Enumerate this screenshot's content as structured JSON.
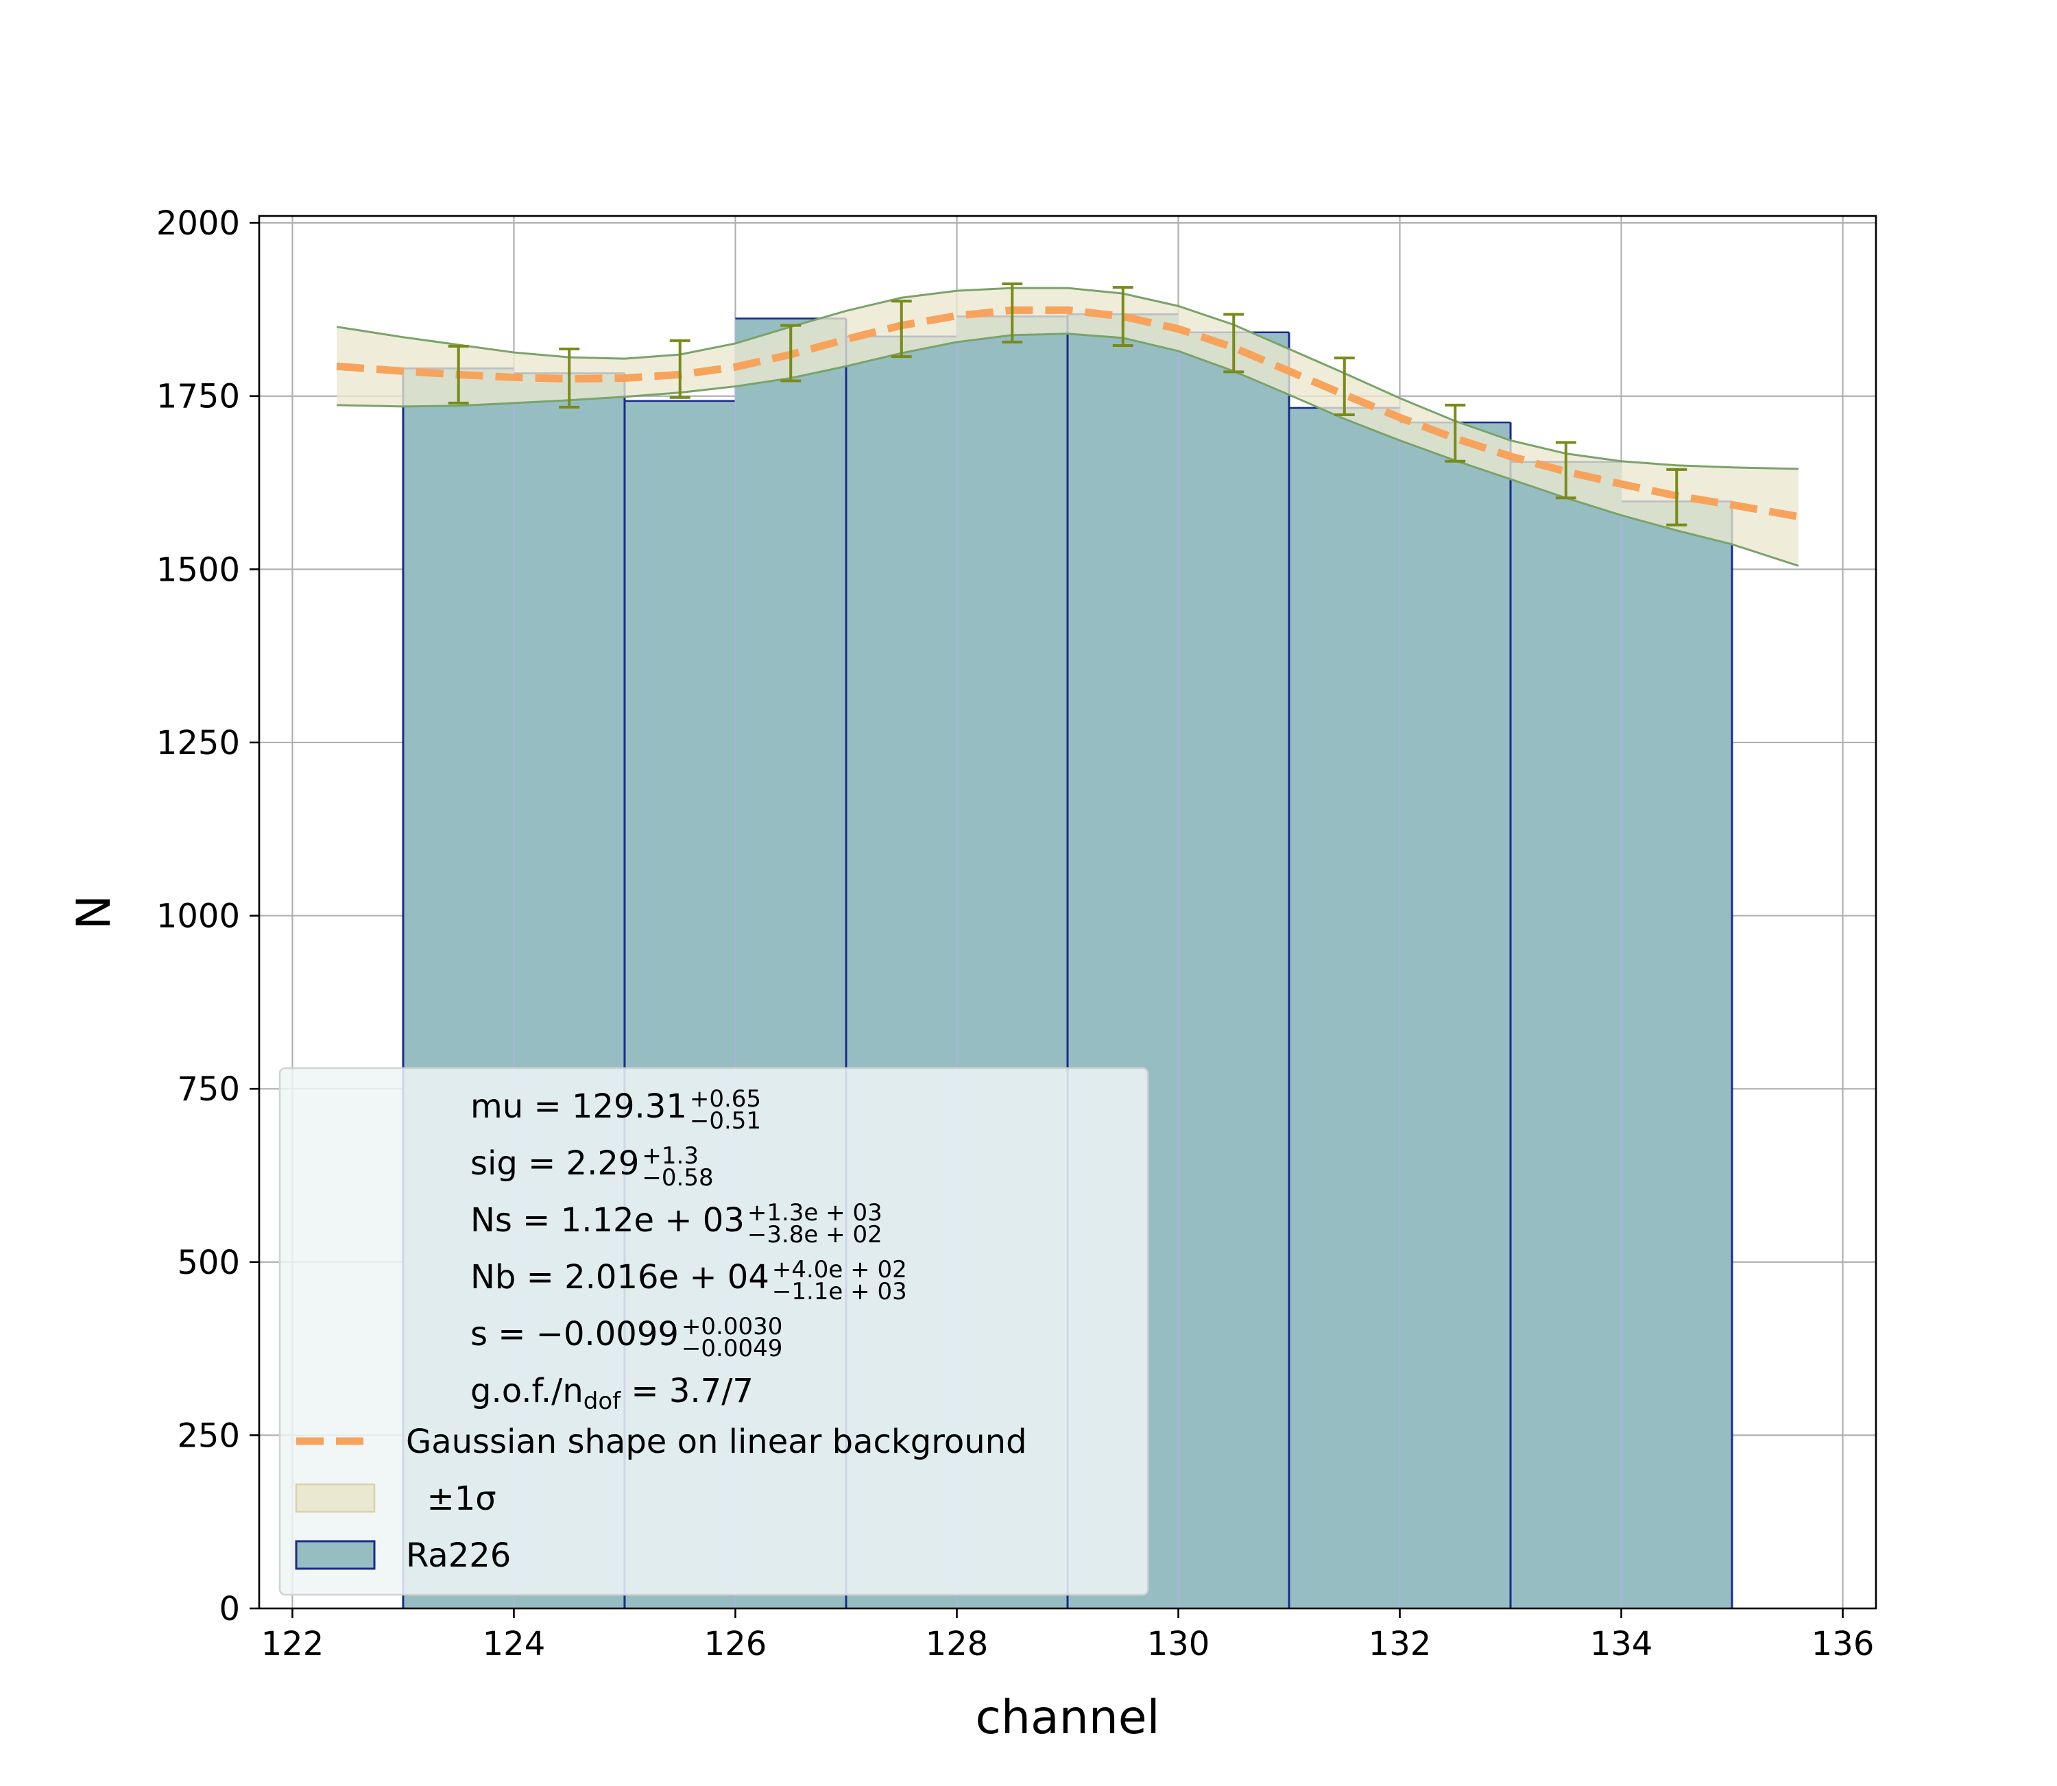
{
  "chart_data": {
    "type": "bar",
    "xlabel": "channel",
    "ylabel": "N",
    "xlim": [
      121.7,
      136.3
    ],
    "ylim": [
      0,
      2010
    ],
    "grid": true,
    "legend_placement": "lower-left",
    "xticks": [
      122,
      124,
      126,
      128,
      130,
      132,
      134,
      136
    ],
    "yticks": [
      0,
      250,
      500,
      750,
      1000,
      1250,
      1500,
      1750,
      2000
    ],
    "histogram": {
      "name": "Ra226",
      "bin_edges": [
        123,
        124,
        125,
        126,
        127,
        128,
        129,
        130,
        131,
        132,
        133,
        134,
        135
      ],
      "values": [
        1790,
        1783,
        1743,
        1862,
        1836,
        1865,
        1868,
        1842,
        1733,
        1712,
        1655,
        1598
      ],
      "fill_color": "#96bec2",
      "edge_color": "#1a2a8c",
      "light_edge_color": "#aab4dc"
    },
    "fit_curve": {
      "name": "Gaussian shape on linear background",
      "x": [
        122.4,
        123,
        123.5,
        124,
        124.5,
        125,
        125.5,
        126,
        126.5,
        127,
        127.5,
        128,
        128.5,
        129,
        129.5,
        130,
        130.5,
        131,
        131.5,
        132,
        132.5,
        133,
        133.5,
        134,
        134.5,
        135,
        135.6
      ],
      "y": [
        1793,
        1786,
        1781,
        1777,
        1775,
        1776,
        1781,
        1792,
        1810,
        1832,
        1852,
        1866,
        1874,
        1874,
        1865,
        1847,
        1820,
        1786,
        1752,
        1719,
        1689,
        1663,
        1641,
        1623,
        1606,
        1593,
        1576
      ],
      "color": "#f7a35c"
    },
    "band": {
      "name": "±1σ",
      "upper": [
        1850,
        1835,
        1824,
        1813,
        1806,
        1804,
        1810,
        1826,
        1850,
        1873,
        1892,
        1902,
        1906,
        1906,
        1898,
        1880,
        1853,
        1818,
        1783,
        1747,
        1714,
        1686,
        1667,
        1656,
        1650,
        1647,
        1645
      ],
      "lower": [
        1737,
        1735,
        1736,
        1740,
        1744,
        1749,
        1755,
        1764,
        1776,
        1793,
        1812,
        1828,
        1838,
        1840,
        1834,
        1815,
        1786,
        1752,
        1717,
        1686,
        1657,
        1630,
        1603,
        1578,
        1556,
        1536,
        1505
      ],
      "fill_color": "#ebe8d0",
      "edge_color": "#7aa36a"
    },
    "errorbars": {
      "x": [
        123.5,
        124.5,
        125.5,
        126.5,
        127.5,
        128.5,
        129.5,
        130.5,
        131.5,
        132.5,
        133.5,
        134.5
      ],
      "y": [
        1781,
        1776,
        1789,
        1812,
        1847,
        1869,
        1864,
        1826,
        1763,
        1696,
        1643,
        1604
      ],
      "upper": [
        1822,
        1818,
        1830,
        1852,
        1887,
        1912,
        1907,
        1868,
        1805,
        1737,
        1683,
        1644
      ],
      "lower": [
        1740,
        1734,
        1748,
        1772,
        1807,
        1828,
        1823,
        1785,
        1723,
        1656,
        1603,
        1564
      ],
      "color": "#7a8a1a"
    },
    "annotations": [
      {
        "label": "mu = 129.31",
        "sup": "+0.65",
        "sub": "−0.51"
      },
      {
        "label": "sig = 2.29",
        "sup": "+1.3",
        "sub": "−0.58"
      },
      {
        "label": "Ns = 1.12e + 03",
        "sup": "+1.3e + 03",
        "sub": "−3.8e + 02"
      },
      {
        "label": "Nb = 2.016e + 04",
        "sup": "+4.0e + 02",
        "sub": "−1.1e + 03"
      },
      {
        "label": "s = −0.0099",
        "sup": "+0.0030",
        "sub": "−0.0049"
      },
      {
        "label": "g.o.f./n",
        "sub_inline": "dof",
        "tail": " = 3.7/7"
      }
    ],
    "legend": [
      {
        "label": "Gaussian shape on linear background",
        "kind": "dashed-line"
      },
      {
        "label": "  ±1σ",
        "kind": "band-patch"
      },
      {
        "label": "Ra226",
        "kind": "hist-patch"
      }
    ]
  }
}
